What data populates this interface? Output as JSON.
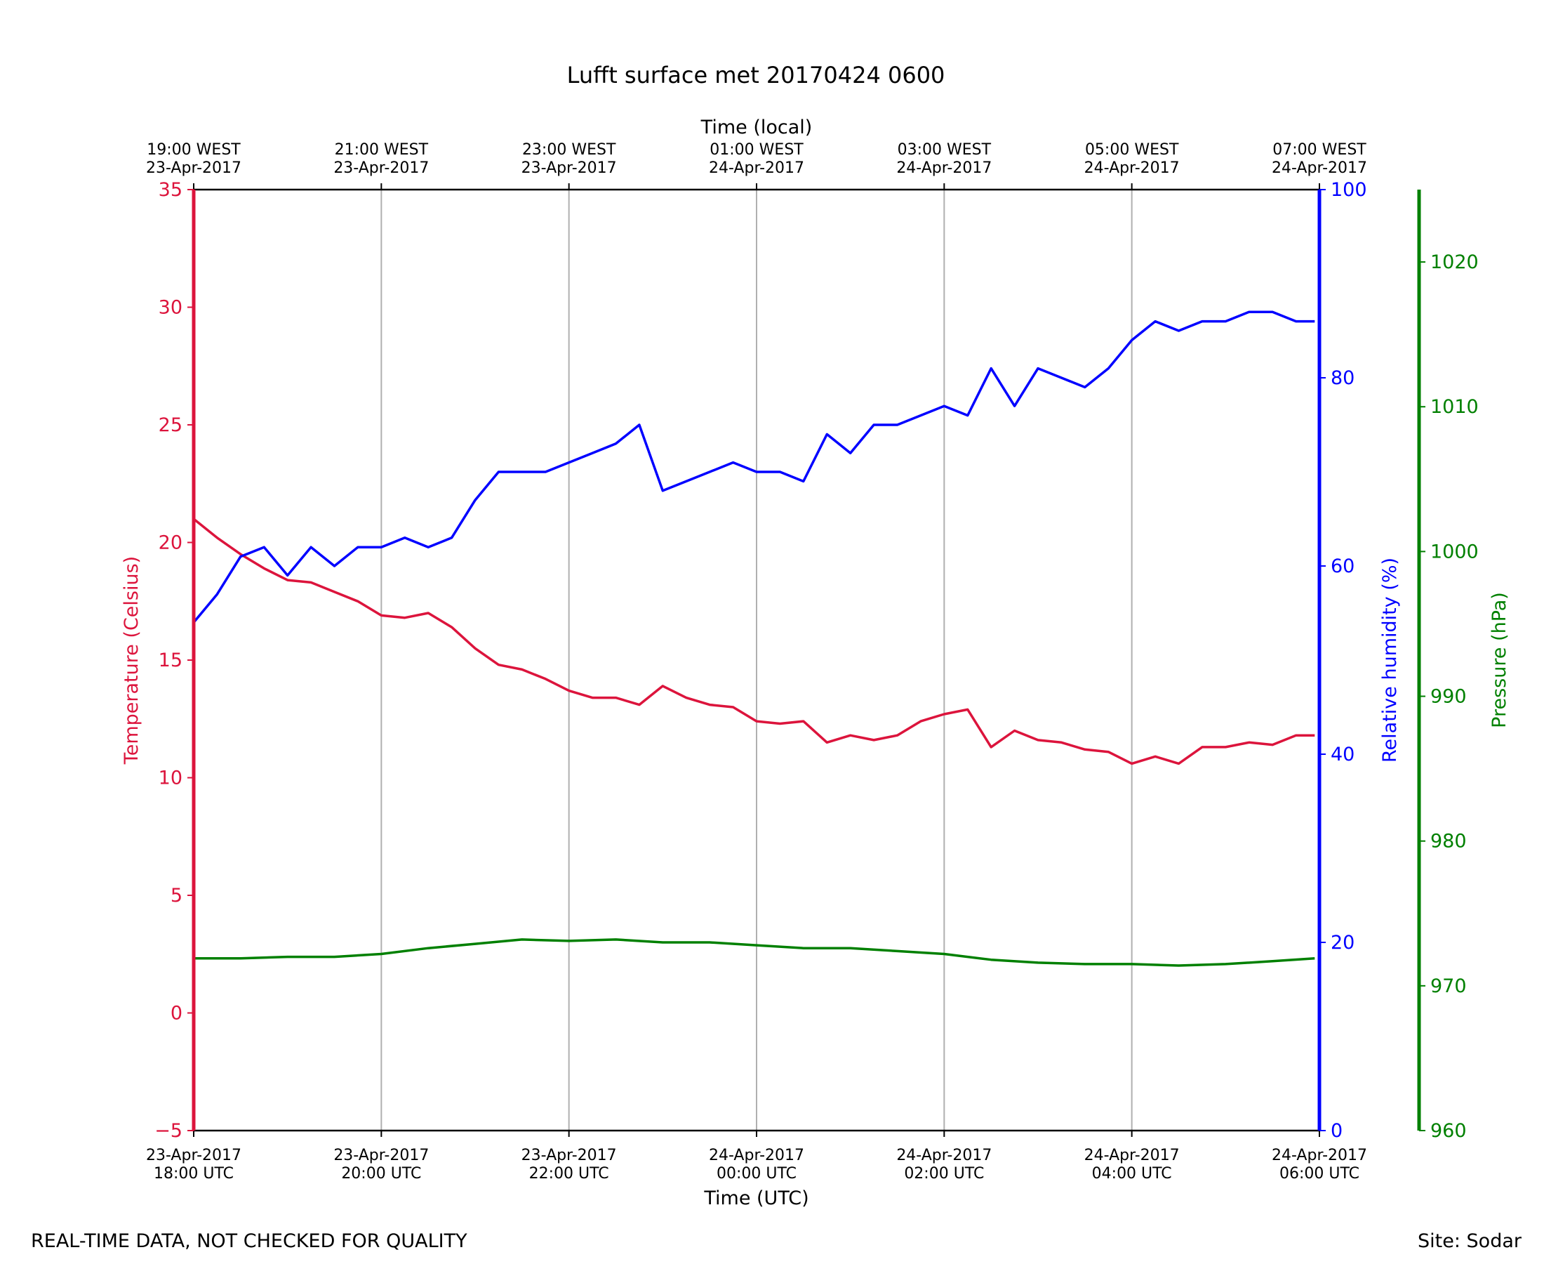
{
  "footer": {
    "left_note": "REAL-TIME DATA, NOT CHECKED FOR QUALITY",
    "right_note": "Site: Sodar"
  },
  "colors": {
    "temperature": "#dc143c",
    "humidity": "#0000ff",
    "pressure": "#008000",
    "grid": "#b0b0b0",
    "axis": "#000000"
  },
  "chart_data": {
    "type": "line",
    "title": "Lufft surface met 20170424 0600",
    "xlabel": "Time (UTC)",
    "xlabel_top": "Time (local)",
    "xlim_hours_utc": [
      18,
      30
    ],
    "x_ticks_bottom": [
      {
        "hour": 18,
        "line1": "23-Apr-2017",
        "line2": "18:00 UTC"
      },
      {
        "hour": 20,
        "line1": "23-Apr-2017",
        "line2": "20:00 UTC"
      },
      {
        "hour": 22,
        "line1": "23-Apr-2017",
        "line2": "22:00 UTC"
      },
      {
        "hour": 24,
        "line1": "24-Apr-2017",
        "line2": "00:00 UTC"
      },
      {
        "hour": 26,
        "line1": "24-Apr-2017",
        "line2": "02:00 UTC"
      },
      {
        "hour": 28,
        "line1": "24-Apr-2017",
        "line2": "04:00 UTC"
      },
      {
        "hour": 30,
        "line1": "24-Apr-2017",
        "line2": "06:00 UTC"
      }
    ],
    "x_ticks_top": [
      {
        "hour": 18,
        "line1": "19:00 WEST",
        "line2": "23-Apr-2017"
      },
      {
        "hour": 20,
        "line1": "21:00 WEST",
        "line2": "23-Apr-2017"
      },
      {
        "hour": 22,
        "line1": "23:00 WEST",
        "line2": "23-Apr-2017"
      },
      {
        "hour": 24,
        "line1": "01:00 WEST",
        "line2": "24-Apr-2017"
      },
      {
        "hour": 26,
        "line1": "03:00 WEST",
        "line2": "24-Apr-2017"
      },
      {
        "hour": 28,
        "line1": "05:00 WEST",
        "line2": "24-Apr-2017"
      },
      {
        "hour": 30,
        "line1": "07:00 WEST",
        "line2": "24-Apr-2017"
      }
    ],
    "grid": "vertical lines at x ticks",
    "axes": [
      {
        "id": "temperature",
        "label": "Temperature (Celsius)",
        "side": "left",
        "ylim": [
          -5,
          35
        ],
        "ticks": [
          -5,
          0,
          5,
          10,
          15,
          20,
          25,
          30,
          35
        ]
      },
      {
        "id": "humidity",
        "label": "Relative humidity (%)",
        "side": "right",
        "ylim": [
          0,
          100
        ],
        "ticks": [
          0,
          20,
          40,
          60,
          80,
          100
        ]
      },
      {
        "id": "pressure",
        "label": "Pressure (hPa)",
        "side": "right-outer",
        "ylim": [
          960,
          1025
        ],
        "ticks": [
          960,
          970,
          980,
          990,
          1000,
          1010,
          1020
        ]
      }
    ],
    "series": [
      {
        "name": "Temperature (Celsius)",
        "axis": "temperature",
        "color": "#dc143c",
        "x_hours_utc": [
          18.0,
          18.25,
          18.5,
          18.75,
          19.0,
          19.25,
          19.5,
          19.75,
          20.0,
          20.25,
          20.5,
          20.75,
          21.0,
          21.25,
          21.5,
          21.75,
          22.0,
          22.25,
          22.5,
          22.75,
          23.0,
          23.25,
          23.5,
          23.75,
          24.0,
          24.25,
          24.5,
          24.75,
          25.0,
          25.25,
          25.5,
          25.75,
          26.0,
          26.25,
          26.5,
          26.75,
          27.0,
          27.25,
          27.5,
          27.75,
          28.0,
          28.25,
          28.5,
          28.75,
          29.0,
          29.25,
          29.5,
          29.75,
          29.95
        ],
        "values": [
          21.0,
          20.2,
          19.5,
          18.9,
          18.4,
          18.3,
          17.9,
          17.5,
          16.9,
          16.8,
          17.0,
          16.4,
          15.5,
          14.8,
          14.6,
          14.2,
          13.7,
          13.4,
          13.4,
          13.1,
          13.9,
          13.4,
          13.1,
          13.0,
          12.4,
          12.3,
          12.4,
          11.5,
          11.8,
          11.6,
          11.8,
          12.4,
          12.7,
          12.9,
          11.3,
          12.0,
          11.6,
          11.5,
          11.2,
          11.1,
          10.6,
          10.9,
          10.6,
          11.3,
          11.3,
          11.5,
          11.4,
          11.8,
          11.8
        ]
      },
      {
        "name": "Relative humidity (%)",
        "axis": "humidity",
        "color": "#0000ff",
        "x_hours_utc": [
          18.0,
          18.25,
          18.5,
          18.75,
          19.0,
          19.25,
          19.5,
          19.75,
          20.0,
          20.25,
          20.5,
          20.75,
          21.0,
          21.25,
          21.5,
          21.75,
          22.0,
          22.25,
          22.5,
          22.75,
          23.0,
          23.25,
          23.5,
          23.75,
          24.0,
          24.25,
          24.5,
          24.75,
          25.0,
          25.25,
          25.5,
          25.75,
          26.0,
          26.25,
          26.5,
          26.75,
          27.0,
          27.25,
          27.5,
          27.75,
          28.0,
          28.25,
          28.5,
          28.75,
          29.0,
          29.25,
          29.5,
          29.75,
          29.95
        ],
        "values": [
          54,
          57,
          61,
          62,
          59,
          62,
          60,
          62,
          62,
          63,
          62,
          63,
          67,
          70,
          70,
          70,
          71,
          72,
          73,
          75,
          68,
          69,
          70,
          71,
          70,
          70,
          69,
          74,
          72,
          75,
          75,
          76,
          77,
          76,
          81,
          77,
          81,
          80,
          79,
          81,
          84,
          86,
          85,
          86,
          86,
          87,
          87,
          86,
          86
        ]
      },
      {
        "name": "Pressure (hPa)",
        "axis": "pressure",
        "color": "#008000",
        "x_hours_utc": [
          18.0,
          18.5,
          19.0,
          19.5,
          20.0,
          20.5,
          21.0,
          21.5,
          22.0,
          22.5,
          23.0,
          23.5,
          24.0,
          24.5,
          25.0,
          25.5,
          26.0,
          26.5,
          27.0,
          27.5,
          28.0,
          28.5,
          29.0,
          29.5,
          29.95
        ],
        "values": [
          971.9,
          971.9,
          972.0,
          972.0,
          972.2,
          972.6,
          972.9,
          973.2,
          973.1,
          973.2,
          973.0,
          973.0,
          972.8,
          972.6,
          972.6,
          972.4,
          972.2,
          971.8,
          971.6,
          971.5,
          971.5,
          971.4,
          971.5,
          971.7,
          971.9
        ]
      }
    ]
  }
}
